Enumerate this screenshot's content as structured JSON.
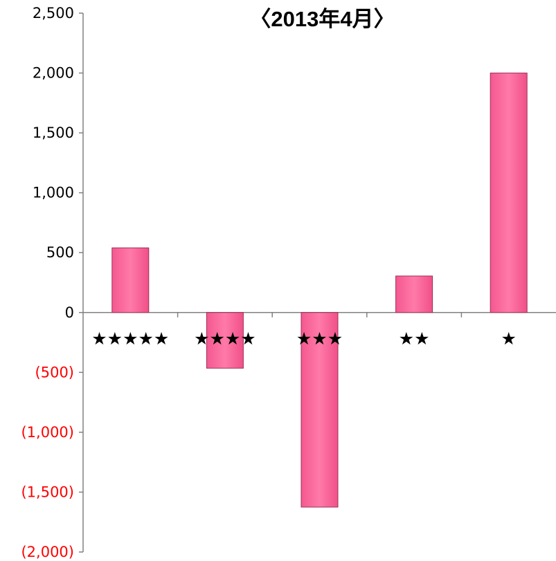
{
  "chart_data": {
    "type": "bar",
    "title": "〈2013年4月〉",
    "categories": [
      "★★★★★",
      "★★★★",
      "★★★",
      "★★",
      "★"
    ],
    "values": [
      540,
      -465,
      -1625,
      305,
      2000
    ],
    "ylim": [
      -2000,
      2500
    ],
    "yticks": [
      2500,
      2000,
      1500,
      1000,
      500,
      0,
      -500,
      -1000,
      -1500,
      -2000
    ],
    "ytick_labels": [
      "2,500",
      "2,000",
      "1,500",
      "1,000",
      "500",
      "0",
      "(500)",
      "(1,000)",
      "(1,500)",
      "(2,000)"
    ],
    "xlabel": "",
    "ylabel": "",
    "grid": false,
    "legend": "none",
    "colors": {
      "bar": "#ff6fa0",
      "bar_edge": "#9c2f56",
      "axis": "#808080",
      "positive_tick": "#000000",
      "negative_tick": "#ff0000"
    }
  }
}
